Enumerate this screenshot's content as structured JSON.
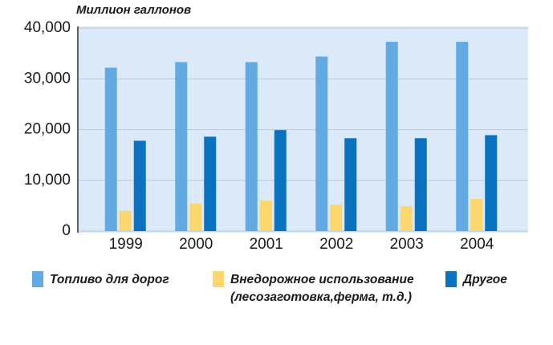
{
  "chart_data": {
    "type": "bar",
    "title": "Миллион галлонов",
    "categories": [
      "1999",
      "2000",
      "2001",
      "2002",
      "2003",
      "2004"
    ],
    "series": [
      {
        "name": "Топливо для дорог",
        "color": "#64aae2",
        "values": [
          32200,
          33300,
          33300,
          34400,
          37300,
          37300
        ]
      },
      {
        "name": "Внедорожное использование (лесозаготовка,ферма, т.д.)",
        "color": "#fbd76c",
        "values": [
          4000,
          5400,
          6000,
          5200,
          4900,
          6300
        ]
      },
      {
        "name": "Другое",
        "color": "#0b72bf",
        "values": [
          17800,
          18600,
          19900,
          18300,
          18300,
          18900
        ]
      }
    ],
    "ylim": [
      0,
      40000
    ],
    "yticks": [
      0,
      {
        "value": 10000,
        "label": "10,000"
      },
      {
        "value": 20000,
        "label": "20,000"
      },
      {
        "value": 30000,
        "label": "30,000"
      },
      {
        "value": 40000,
        "label": "40,000"
      }
    ],
    "grid": true
  }
}
